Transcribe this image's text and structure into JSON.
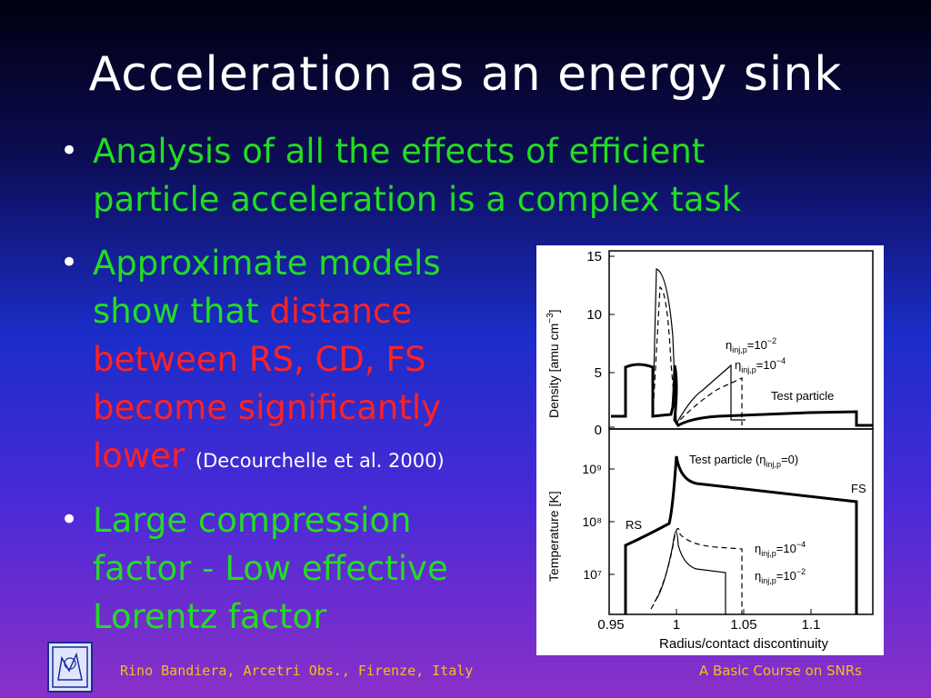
{
  "slide": {
    "title": "Acceleration as an energy sink",
    "bullets": [
      {
        "lines": [
          "Analysis of all the effects of efficient",
          "particle acceleration is a complex task"
        ]
      },
      {
        "line1": "Approximate models",
        "line2_green": "show that ",
        "line2_red": "distance",
        "line3_red": "between RS, CD, FS",
        "line4_red": "become significantly",
        "line5_red": "lower",
        "citation": "(Decourchelle et al. 2000)"
      },
      {
        "lines": [
          "Large compression",
          "factor - Low effective",
          "Lorentz factor"
        ]
      }
    ],
    "bullet_marker": "•"
  },
  "figure": {
    "top_panel": {
      "ylabel": "Density [amu cm",
      "ylabel_sup": "−3",
      "ylabel_end": "]",
      "y_ticks": [
        "15",
        "10",
        "5",
        "0"
      ],
      "annotations": {
        "eta_1e2": "η",
        "label_test_particle": "Test particle"
      }
    },
    "bottom_panel": {
      "ylabel": "Temperature [K]",
      "y_ticks": [
        "10⁹",
        "10⁸",
        "10⁷"
      ],
      "label_test_particle": "Test particle (η",
      "label_test_particle_tail": "=0)",
      "label_rs": "RS",
      "label_fs": "FS"
    },
    "x_ticks": [
      "0.95",
      "1",
      "1.05",
      "1.1"
    ],
    "xlabel": "Radius/contact discontinuity"
  },
  "footer": {
    "left": "Rino Bandiera, Arcetri Obs., Firenze, Italy",
    "right": "A Basic Course on SNRs"
  }
}
